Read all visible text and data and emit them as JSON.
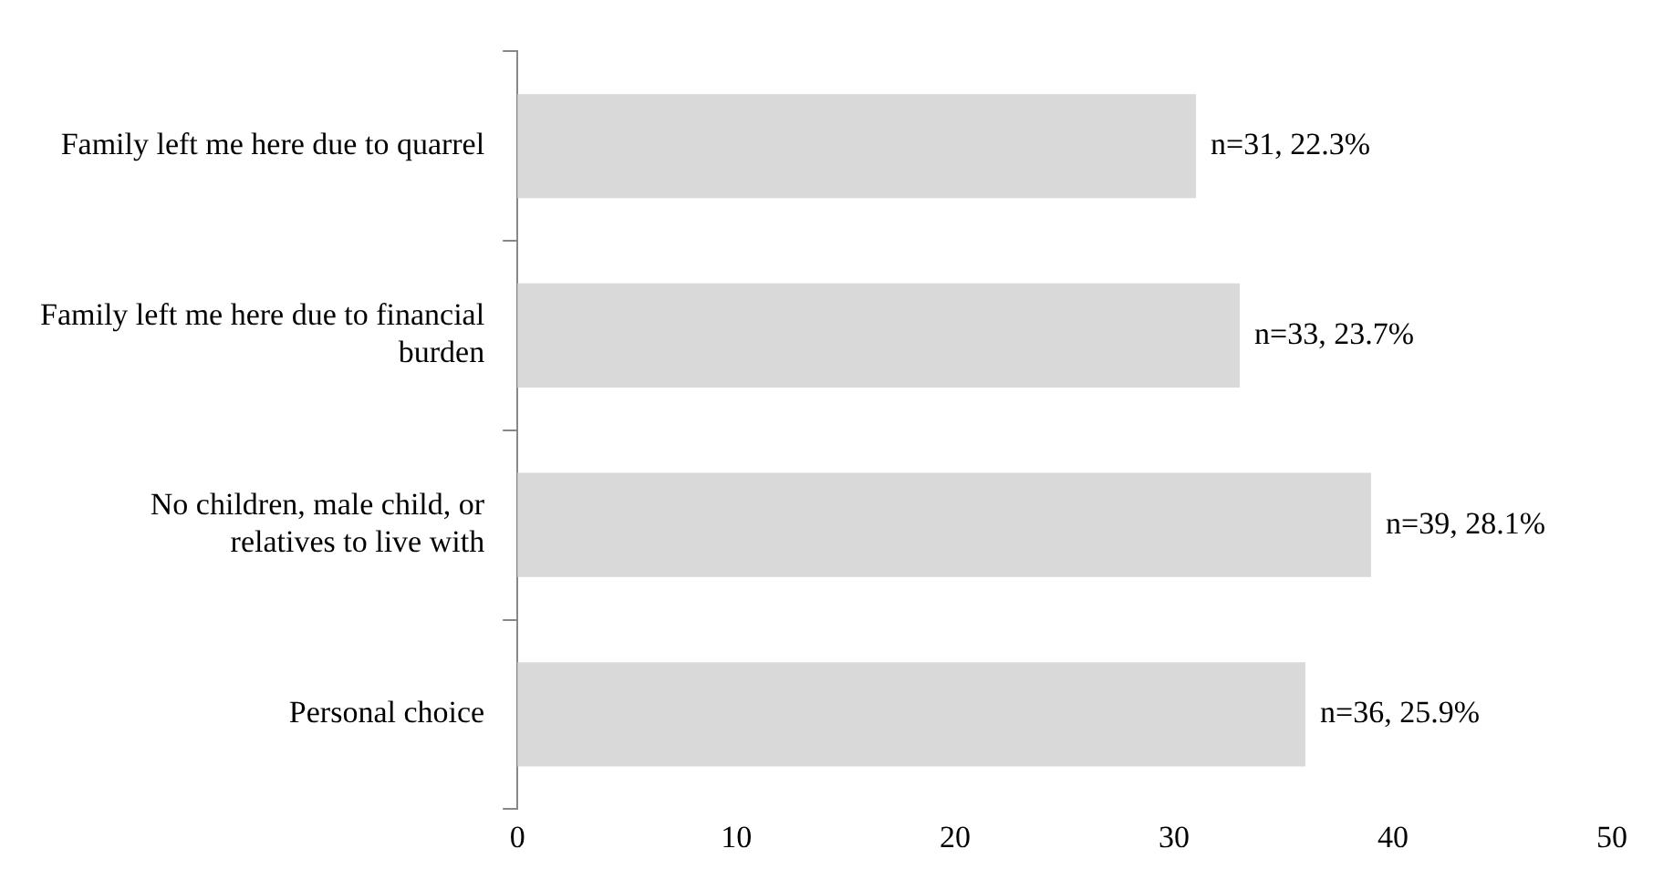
{
  "chart_data": {
    "type": "bar",
    "orientation": "horizontal",
    "categories": [
      "Family left me here due to quarrel",
      "Family left me here due to financial burden",
      "No children, male child, or relatives to live with",
      "Personal choice"
    ],
    "values": [
      31,
      33,
      39,
      36
    ],
    "value_labels": [
      "n=31, 22.3%",
      "n=33, 23.7%",
      "n=39, 28.1%",
      "n=36, 25.9%"
    ],
    "color": "#d9d9d9",
    "xlim": [
      0,
      50
    ],
    "xticks": [
      0,
      10,
      20,
      30,
      40,
      50
    ],
    "legend": false
  }
}
